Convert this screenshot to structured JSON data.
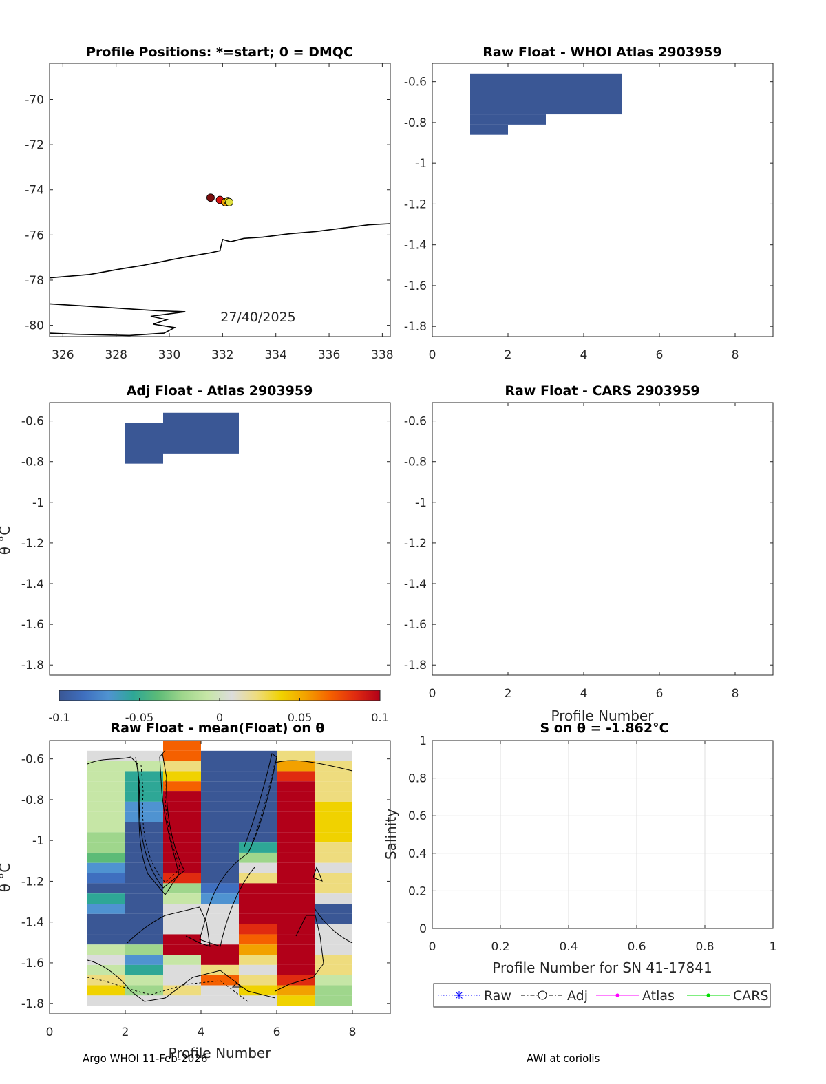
{
  "colors": {
    "cmap": [
      "#3a5795",
      "#3f6fbf",
      "#4f93d1",
      "#2ea796",
      "#5cbb77",
      "#9fd68c",
      "#c6e6a6",
      "#dcdcdc",
      "#eedc7e",
      "#f0d200",
      "#f2a100",
      "#f56000",
      "#e02b10",
      "#b20019"
    ],
    "coast": "#000000",
    "raw": "#0000ff",
    "adj": "#000000",
    "atlas": "#ff00ff",
    "cars": "#00dd00"
  },
  "footer": {
    "left": "Argo WHOI 11-Feb-2026",
    "right": "AWI at coriolis"
  },
  "chart_data": [
    {
      "id": "positions",
      "type": "scatter",
      "title": "Profile Positions: *=start; 0 = DMQC",
      "xlim": [
        325.5,
        338.3
      ],
      "ylim": [
        -80.5,
        -68.4
      ],
      "xticks": [
        "326",
        "328",
        "330",
        "332",
        "334",
        "336",
        "338"
      ],
      "xtick_values": [
        326,
        328,
        330,
        332,
        334,
        336,
        338
      ],
      "yticks": [
        "-70",
        "-72",
        "-74",
        "-76",
        "-78",
        "-80"
      ],
      "ytick_values": [
        -70,
        -72,
        -74,
        -76,
        -78,
        -80
      ],
      "annotation": "27/40/2025",
      "annotation_at": [
        333.3,
        -80.0
      ],
      "points": [
        {
          "x": 331.55,
          "y": -74.35,
          "color": "#7a0e0e"
        },
        {
          "x": 331.9,
          "y": -74.45,
          "color": "#d41010"
        },
        {
          "x": 332.1,
          "y": -74.55,
          "color": "#f0a000"
        },
        {
          "x": 332.2,
          "y": -74.5,
          "color": "#e8d000"
        },
        {
          "x": 332.25,
          "y": -74.55,
          "color": "#e0e040"
        }
      ],
      "coast": [
        [
          [
            325.5,
            -77.9
          ],
          [
            327.0,
            -77.75
          ],
          [
            328.2,
            -77.5
          ],
          [
            329.0,
            -77.35
          ],
          [
            330.5,
            -77.0
          ],
          [
            331.5,
            -76.8
          ],
          [
            331.9,
            -76.7
          ],
          [
            332.0,
            -76.2
          ],
          [
            332.3,
            -76.3
          ],
          [
            332.8,
            -76.15
          ],
          [
            333.5,
            -76.1
          ],
          [
            334.5,
            -75.95
          ],
          [
            335.5,
            -75.85
          ],
          [
            336.5,
            -75.7
          ],
          [
            337.5,
            -75.55
          ],
          [
            338.3,
            -75.5
          ]
        ],
        [
          [
            325.5,
            -79.05
          ],
          [
            327.5,
            -79.2
          ],
          [
            329.5,
            -79.35
          ],
          [
            330.6,
            -79.4
          ],
          [
            329.3,
            -79.6
          ],
          [
            329.9,
            -79.75
          ],
          [
            329.4,
            -79.95
          ],
          [
            330.2,
            -80.1
          ],
          [
            329.8,
            -80.35
          ],
          [
            328.5,
            -80.45
          ],
          [
            326.5,
            -80.4
          ],
          [
            325.5,
            -80.35
          ]
        ]
      ]
    },
    {
      "id": "raw-whoi",
      "type": "heatmap",
      "title": "Raw Float - WHOI Atlas  2903959",
      "xlim": [
        0,
        9
      ],
      "ylim": [
        -1.85,
        -0.51
      ],
      "xticks": [
        "0",
        "2",
        "4",
        "6",
        "8"
      ],
      "xtick_values": [
        0,
        2,
        4,
        6,
        8
      ],
      "yticks": [
        "-0.6",
        "-0.8",
        "-1",
        "-1.2",
        "-1.4",
        "-1.6",
        "-1.8"
      ],
      "ytick_values": [
        -0.6,
        -0.8,
        -1,
        -1.2,
        -1.4,
        -1.6,
        -1.8
      ],
      "cells": [
        {
          "x0": 1,
          "x1": 5,
          "y0": -0.56,
          "y1": -0.76,
          "color": "#3a5795"
        },
        {
          "x0": 1,
          "x1": 3,
          "y0": -0.76,
          "y1": -0.81,
          "color": "#3a5795"
        },
        {
          "x0": 1,
          "x1": 2,
          "y0": -0.81,
          "y1": -0.86,
          "color": "#3a5795"
        }
      ]
    },
    {
      "id": "adj-atlas",
      "type": "heatmap",
      "title": "Adj Float - Atlas  2903959",
      "ylabel": "θ °C",
      "xlim": [
        0,
        9
      ],
      "ylim": [
        -1.85,
        -0.51
      ],
      "yticks": [
        "-0.6",
        "-0.8",
        "-1",
        "-1.2",
        "-1.4",
        "-1.6",
        "-1.8"
      ],
      "ytick_values": [
        -0.6,
        -0.8,
        -1,
        -1.2,
        -1.4,
        -1.6,
        -1.8
      ],
      "cells": [
        {
          "x0": 3,
          "x1": 5,
          "y0": -0.56,
          "y1": -0.76,
          "color": "#3a5795"
        },
        {
          "x0": 2,
          "x1": 3,
          "y0": -0.61,
          "y1": -0.81,
          "color": "#3a5795"
        }
      ]
    },
    {
      "id": "raw-cars",
      "type": "heatmap",
      "title": "Raw Float - CARS  2903959",
      "xlabel": "Profile Number",
      "xlim": [
        0,
        9
      ],
      "ylim": [
        -1.85,
        -0.51
      ],
      "xticks": [
        "0",
        "2",
        "4",
        "6",
        "8"
      ],
      "xtick_values": [
        0,
        2,
        4,
        6,
        8
      ],
      "yticks": [
        "-0.6",
        "-0.8",
        "-1",
        "-1.2",
        "-1.4",
        "-1.6",
        "-1.8"
      ],
      "ytick_values": [
        -0.6,
        -0.8,
        -1,
        -1.2,
        -1.4,
        -1.6,
        -1.8
      ],
      "cells": []
    },
    {
      "id": "colorbar",
      "type": "colorbar",
      "range": [
        -0.1,
        0.1
      ],
      "ticks": [
        "-0.1",
        "-0.05",
        "0",
        "0.05",
        "0.1"
      ],
      "tick_values": [
        -0.1,
        -0.05,
        0,
        0.05,
        0.1
      ]
    },
    {
      "id": "anomaly",
      "type": "heatmap",
      "title": "Raw Float - mean(Float) on θ",
      "xlabel": "Profile Number",
      "ylabel": "θ °C",
      "xlim": [
        0,
        9
      ],
      "ylim": [
        -1.85,
        -0.51
      ],
      "xticks": [
        "0",
        "2",
        "4",
        "6",
        "8"
      ],
      "xtick_values": [
        0,
        2,
        4,
        6,
        8
      ],
      "yticks": [
        "-0.6",
        "-0.8",
        "-1",
        "-1.2",
        "-1.4",
        "-1.6",
        "-1.8"
      ],
      "ytick_values": [
        -0.6,
        -0.8,
        -1,
        -1.2,
        -1.4,
        -1.6,
        -1.8
      ],
      "row_edges": [
        -0.56,
        -0.61,
        -0.66,
        -0.71,
        -0.76,
        -0.81,
        -0.86,
        -0.91,
        -0.96,
        -1.01,
        -1.06,
        -1.11,
        -1.16,
        -1.21,
        -1.26,
        -1.31,
        -1.36,
        -1.41,
        -1.46,
        -1.51,
        -1.56,
        -1.61,
        -1.66,
        -1.71,
        -1.76,
        -1.81
      ],
      "columns": [
        {
          "x0": 1,
          "x1": 2,
          "rows": [
            7,
            6,
            6,
            6,
            6,
            6,
            6,
            6,
            5,
            5,
            4,
            2,
            1,
            0,
            3,
            2,
            0,
            0,
            0,
            6,
            7,
            6,
            8,
            9,
            7
          ]
        },
        {
          "x0": 2,
          "x1": 3,
          "rows": [
            7,
            6,
            3,
            3,
            3,
            2,
            2,
            0,
            0,
            0,
            0,
            0,
            0,
            0,
            0,
            0,
            0,
            0,
            0,
            5,
            2,
            3,
            6,
            5,
            7
          ]
        },
        {
          "x0": 3,
          "x1": 4,
          "rows": [
            11,
            8,
            9,
            11,
            13,
            13,
            13,
            13,
            13,
            13,
            13,
            13,
            12,
            5,
            6,
            7,
            7,
            7,
            13,
            13,
            6,
            7,
            7,
            8,
            7
          ]
        },
        {
          "x0": 4,
          "x1": 5,
          "rows": [
            0,
            0,
            0,
            0,
            0,
            0,
            0,
            0,
            0,
            0,
            0,
            0,
            0,
            1,
            2,
            7,
            7,
            7,
            7,
            13,
            13,
            8,
            11,
            7,
            7
          ]
        },
        {
          "x0": 5,
          "x1": 6,
          "rows": [
            0,
            0,
            0,
            0,
            0,
            0,
            0,
            0,
            0,
            3,
            5,
            7,
            8,
            13,
            13,
            13,
            13,
            12,
            11,
            10,
            8,
            7,
            8,
            9,
            7
          ]
        },
        {
          "x0": 6,
          "x1": 7,
          "rows": [
            8,
            10,
            12,
            13,
            13,
            13,
            13,
            13,
            13,
            13,
            13,
            13,
            13,
            13,
            13,
            13,
            13,
            13,
            13,
            13,
            13,
            13,
            12,
            10,
            9
          ]
        },
        {
          "x0": 7,
          "x1": 8,
          "rows": [
            7,
            8,
            8,
            8,
            8,
            9,
            9,
            9,
            9,
            8,
            8,
            7,
            8,
            8,
            7,
            0,
            0,
            7,
            7,
            7,
            8,
            8,
            6,
            5,
            5
          ]
        }
      ],
      "extra_cells": [
        {
          "x0": 3,
          "x1": 4,
          "y0": -0.51,
          "y1": -0.56,
          "color": "#f56000"
        }
      ]
    },
    {
      "id": "salinity",
      "type": "line",
      "title": "S on θ = -1.862°C",
      "xlabel": "Profile Number for SN 41-17841",
      "ylabel": "Salinity",
      "xlim": [
        0,
        1
      ],
      "ylim": [
        0,
        1
      ],
      "xticks": [
        "0",
        "0.2",
        "0.4",
        "0.6",
        "0.8",
        "1"
      ],
      "xtick_values": [
        0,
        0.2,
        0.4,
        0.6,
        0.8,
        1
      ],
      "yticks": [
        "0",
        "0.2",
        "0.4",
        "0.6",
        "0.8",
        "1"
      ],
      "ytick_values": [
        0,
        0.2,
        0.4,
        0.6,
        0.8,
        1
      ],
      "grid": true,
      "legend_position": "bottom-outside",
      "series": [
        {
          "name": "Raw",
          "values": [],
          "color": "#0000ff",
          "style": "dotted-star"
        },
        {
          "name": "Adj",
          "values": [],
          "color": "#000000",
          "style": "dashdot-circle"
        },
        {
          "name": "Atlas",
          "values": [],
          "color": "#ff00ff",
          "style": "solid-dot"
        },
        {
          "name": "CARS",
          "values": [],
          "color": "#00dd00",
          "style": "solid-dot"
        }
      ]
    }
  ]
}
